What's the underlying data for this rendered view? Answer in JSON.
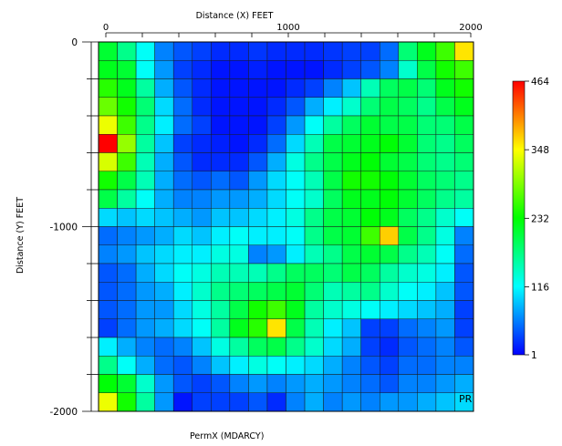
{
  "chart_data": {
    "type": "heatmap",
    "title": "",
    "xlabel": "Distance (X)   FEET",
    "ylabel": "Distance (Y)   FEET",
    "footer_label": "PermX (MDARCY)",
    "corner_label": "PR",
    "x_ticks": [
      0,
      1000,
      2000
    ],
    "y_ticks": [
      0,
      -1000,
      -2000
    ],
    "x_tick_labels": [
      "0",
      "1000",
      "2000"
    ],
    "y_tick_labels": [
      "0",
      "-1000",
      "-2000"
    ],
    "xlim": [
      0,
      2000
    ],
    "ylim": [
      -2000,
      0
    ],
    "nx": 20,
    "ny": 20,
    "colorbar": {
      "min": 1,
      "max": 464,
      "ticks": [
        1,
        116,
        232,
        348,
        464
      ],
      "tick_labels": [
        "1",
        "116",
        "232",
        "348",
        "464"
      ],
      "colormap": [
        "#0000ff",
        "#00ffff",
        "#00ff00",
        "#ffff00",
        "#ff0000"
      ]
    },
    "values": [
      [
        210,
        170,
        120,
        60,
        40,
        30,
        20,
        20,
        25,
        20,
        20,
        20,
        25,
        30,
        30,
        50,
        180,
        220,
        260,
        360
      ],
      [
        220,
        210,
        120,
        70,
        30,
        20,
        10,
        10,
        15,
        10,
        10,
        10,
        20,
        30,
        40,
        60,
        140,
        200,
        240,
        260
      ],
      [
        250,
        220,
        160,
        80,
        40,
        20,
        10,
        10,
        10,
        10,
        20,
        30,
        60,
        90,
        150,
        190,
        200,
        180,
        220,
        240
      ],
      [
        280,
        240,
        180,
        100,
        50,
        20,
        10,
        10,
        10,
        20,
        40,
        80,
        110,
        140,
        180,
        200,
        190,
        170,
        200,
        220
      ],
      [
        340,
        260,
        170,
        110,
        50,
        30,
        10,
        10,
        10,
        30,
        70,
        120,
        160,
        190,
        210,
        200,
        200,
        180,
        180,
        200
      ],
      [
        464,
        300,
        160,
        90,
        30,
        20,
        15,
        10,
        20,
        50,
        100,
        150,
        200,
        210,
        220,
        230,
        210,
        180,
        170,
        190
      ],
      [
        330,
        260,
        150,
        80,
        40,
        20,
        20,
        20,
        40,
        80,
        130,
        170,
        200,
        220,
        230,
        210,
        200,
        180,
        170,
        180
      ],
      [
        240,
        200,
        150,
        80,
        50,
        40,
        50,
        40,
        70,
        100,
        120,
        150,
        200,
        240,
        240,
        230,
        210,
        190,
        180,
        170
      ],
      [
        200,
        160,
        120,
        80,
        60,
        60,
        70,
        70,
        80,
        100,
        120,
        140,
        190,
        220,
        220,
        230,
        210,
        190,
        170,
        160
      ],
      [
        100,
        90,
        100,
        90,
        80,
        70,
        90,
        90,
        100,
        110,
        130,
        170,
        200,
        210,
        230,
        220,
        190,
        170,
        140,
        120
      ],
      [
        50,
        60,
        70,
        80,
        100,
        90,
        110,
        120,
        110,
        110,
        120,
        170,
        200,
        210,
        260,
        370,
        200,
        170,
        130,
        60
      ],
      [
        60,
        70,
        90,
        100,
        110,
        110,
        130,
        130,
        60,
        70,
        110,
        150,
        170,
        200,
        210,
        200,
        170,
        150,
        120,
        50
      ],
      [
        40,
        50,
        80,
        100,
        120,
        130,
        150,
        150,
        150,
        170,
        190,
        190,
        180,
        200,
        190,
        160,
        140,
        130,
        110,
        40
      ],
      [
        40,
        50,
        70,
        80,
        110,
        140,
        170,
        180,
        190,
        200,
        210,
        180,
        150,
        160,
        170,
        140,
        120,
        110,
        90,
        40
      ],
      [
        40,
        50,
        70,
        70,
        100,
        130,
        160,
        200,
        240,
        260,
        220,
        160,
        140,
        130,
        120,
        110,
        100,
        90,
        80,
        30
      ],
      [
        30,
        50,
        70,
        80,
        100,
        120,
        160,
        220,
        250,
        360,
        200,
        150,
        110,
        90,
        30,
        30,
        50,
        60,
        70,
        30
      ],
      [
        110,
        80,
        60,
        50,
        60,
        90,
        130,
        160,
        190,
        200,
        170,
        140,
        100,
        80,
        30,
        20,
        40,
        50,
        60,
        40
      ],
      [
        170,
        120,
        80,
        50,
        40,
        60,
        90,
        110,
        130,
        120,
        110,
        100,
        80,
        60,
        40,
        30,
        50,
        50,
        60,
        60
      ],
      [
        230,
        210,
        140,
        70,
        40,
        30,
        40,
        60,
        70,
        60,
        70,
        80,
        70,
        60,
        50,
        40,
        60,
        60,
        70,
        80
      ],
      [
        340,
        240,
        160,
        70,
        10,
        30,
        30,
        30,
        40,
        20,
        60,
        80,
        60,
        70,
        60,
        70,
        70,
        80,
        90,
        100
      ]
    ]
  }
}
